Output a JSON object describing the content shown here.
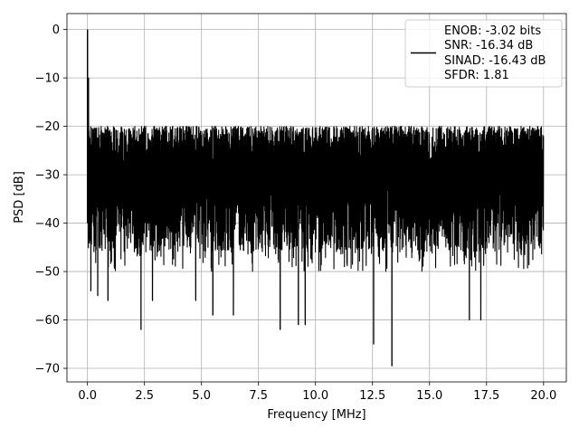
{
  "chart_data": {
    "type": "line",
    "title": "",
    "xlabel": "Frequency [MHz]",
    "ylabel": "PSD [dB]",
    "xlim": [
      -0.9,
      21.0
    ],
    "ylim": [
      -72.8,
      3.3
    ],
    "grid": true,
    "x_ticks": [
      0.0,
      2.5,
      5.0,
      7.5,
      10.0,
      12.5,
      15.0,
      17.5,
      20.0
    ],
    "x_tick_labels": [
      "0.0",
      "2.5",
      "5.0",
      "7.5",
      "10.0",
      "12.5",
      "15.0",
      "17.5",
      "20.0"
    ],
    "y_ticks": [
      0,
      -10,
      -20,
      -30,
      -40,
      -50,
      -60,
      -70
    ],
    "y_tick_labels": [
      "0",
      "−10",
      "−20",
      "−30",
      "−40",
      "−50",
      "−60",
      "−70"
    ],
    "legend_position": "top-right",
    "series": [
      {
        "name": "ENOB: -3.02 bits\nSNR: -16.34 dB\nSINAD: -16.43 dB\nSFDR: 1.81",
        "color": "#000000",
        "style": "noise-floor-spectrum",
        "frequency_range_mhz": [
          0.0,
          20.0
        ],
        "peak": {
          "x": 0.0,
          "y": 0.0
        },
        "secondary_peak": {
          "x": 0.05,
          "y": -10
        },
        "upper_envelope_db": -20,
        "band_low_db": -40,
        "lower_envelope_db": -50,
        "notable_dips": [
          {
            "x": 0.15,
            "y": -54
          },
          {
            "x": 0.45,
            "y": -55
          },
          {
            "x": 0.9,
            "y": -56
          },
          {
            "x": 2.35,
            "y": -62
          },
          {
            "x": 2.85,
            "y": -56
          },
          {
            "x": 4.75,
            "y": -56
          },
          {
            "x": 5.5,
            "y": -59
          },
          {
            "x": 6.4,
            "y": -59
          },
          {
            "x": 8.45,
            "y": -62
          },
          {
            "x": 9.25,
            "y": -61
          },
          {
            "x": 9.55,
            "y": -61
          },
          {
            "x": 12.55,
            "y": -65
          },
          {
            "x": 13.35,
            "y": -69.5
          },
          {
            "x": 16.75,
            "y": -60
          },
          {
            "x": 17.25,
            "y": -60
          }
        ]
      }
    ]
  },
  "legend": {
    "lines": [
      "ENOB: -3.02 bits",
      "SNR: -16.34 dB",
      "SINAD: -16.43 dB",
      "SFDR: 1.81"
    ]
  }
}
